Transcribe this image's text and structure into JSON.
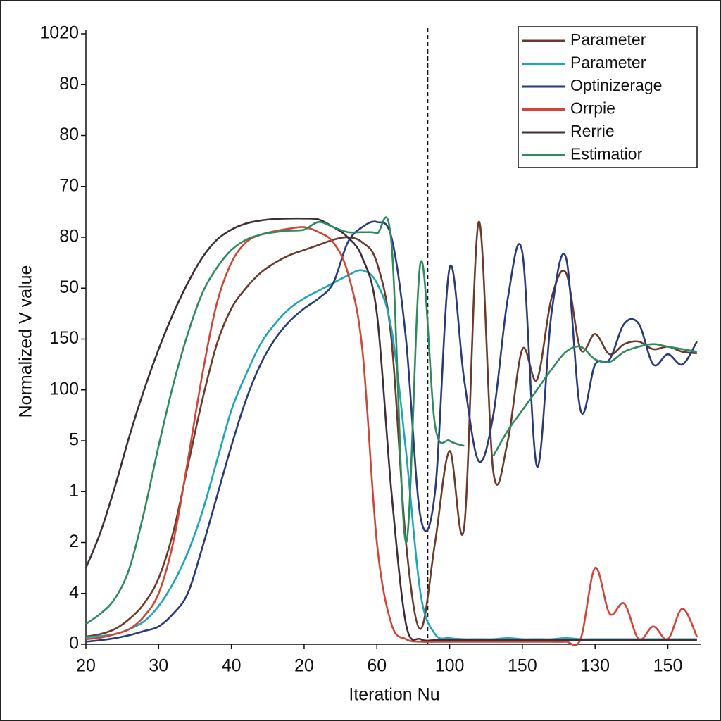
{
  "chart_data": {
    "type": "line",
    "xlabel": "Iteration Nu",
    "ylabel": "Normalized V value",
    "x": [
      0,
      0.2,
      0.4,
      0.6,
      0.8,
      1,
      1.2,
      1.4,
      1.6,
      1.8,
      2,
      2.2,
      2.4,
      2.6,
      2.8,
      3,
      3.2,
      3.4,
      3.6,
      3.8,
      4,
      4.2,
      4.4,
      4.6,
      4.8,
      5,
      5.2,
      5.4,
      5.6,
      5.8,
      6,
      6.2,
      6.4,
      6.6,
      6.8,
      7,
      7.2,
      7.4,
      7.6,
      7.8,
      8,
      8.2,
      8.4
    ],
    "series": [
      {
        "name": "Parameter",
        "color": "#6b3a2a",
        "values": [
          0.15,
          0.2,
          0.3,
          0.5,
          0.8,
          1.3,
          2.2,
          3.5,
          4.8,
          5.9,
          6.6,
          7.0,
          7.3,
          7.5,
          7.65,
          7.75,
          7.85,
          7.95,
          8.0,
          7.9,
          7.5,
          6.0,
          2.0,
          0.3,
          2.0,
          3.8,
          2.3,
          8.3,
          3.4,
          4.0,
          5.8,
          5.2,
          6.8,
          7.3,
          5.8,
          6.1,
          5.7,
          5.9,
          5.95,
          5.8,
          5.85,
          5.75,
          5.72
        ]
      },
      {
        "name": "Parameter",
        "color": "#1fa5b5",
        "values": [
          0.14,
          0.16,
          0.2,
          0.3,
          0.45,
          0.75,
          1.2,
          1.8,
          2.6,
          3.6,
          4.6,
          5.3,
          5.9,
          6.3,
          6.6,
          6.8,
          6.95,
          7.1,
          7.25,
          7.35,
          7.1,
          6.2,
          3.8,
          1.0,
          0.2,
          0.12,
          0.1,
          0.1,
          0.1,
          0.12,
          0.1,
          0.1,
          0.1,
          0.12,
          0.1,
          0.1,
          0.1,
          0.1,
          0.1,
          0.1,
          0.1,
          0.1,
          0.1
        ]
      },
      {
        "name": "Optinizerage",
        "color": "#283a7a",
        "values": [
          0.05,
          0.08,
          0.12,
          0.18,
          0.26,
          0.35,
          0.6,
          1.0,
          1.9,
          2.9,
          3.9,
          4.8,
          5.5,
          6.0,
          6.35,
          6.6,
          6.8,
          7.1,
          7.9,
          8.2,
          8.3,
          8.0,
          6.0,
          2.5,
          3.0,
          7.4,
          5.2,
          3.6,
          4.5,
          6.8,
          7.7,
          3.5,
          6.5,
          7.6,
          4.6,
          5.5,
          5.6,
          6.3,
          6.3,
          5.5,
          5.7,
          5.5,
          5.95
        ]
      },
      {
        "name": "Orrpie",
        "color": "#d04535",
        "values": [
          0.1,
          0.13,
          0.2,
          0.3,
          0.55,
          1.0,
          2.0,
          3.6,
          5.3,
          6.7,
          7.5,
          7.9,
          8.05,
          8.12,
          8.17,
          8.2,
          8.1,
          7.9,
          7.3,
          5.8,
          2.0,
          0.4,
          0.1,
          0.05,
          0.05,
          0.05,
          0.05,
          0.05,
          0.05,
          0.05,
          0.05,
          0.05,
          0.05,
          0.05,
          0.1,
          1.5,
          0.6,
          0.8,
          0.1,
          0.35,
          0.1,
          0.7,
          0.15
        ]
      },
      {
        "name": "Rerrie",
        "color": "#3d2f3a",
        "values": [
          1.5,
          2.2,
          3.1,
          4.1,
          5.0,
          5.8,
          6.5,
          7.1,
          7.6,
          7.95,
          8.15,
          8.27,
          8.33,
          8.36,
          8.37,
          8.37,
          8.35,
          8.2,
          8.0,
          7.6,
          6.5,
          3.0,
          0.4,
          0.1,
          0.08,
          0.08,
          0.08,
          0.08,
          0.08,
          0.08,
          0.08,
          0.08,
          0.08,
          0.08,
          0.08,
          0.08,
          0.08,
          0.08,
          0.08,
          0.08,
          0.08,
          0.08,
          0.08
        ]
      },
      {
        "name": "Estimatior",
        "color": "#2e8b5e",
        "values": [
          0.4,
          0.6,
          0.9,
          1.5,
          2.6,
          3.9,
          5.1,
          6.1,
          6.9,
          7.4,
          7.75,
          7.95,
          8.05,
          8.1,
          8.13,
          8.15,
          8.3,
          8.2,
          8.1,
          8.1,
          8.08,
          7.9,
          2.0,
          7.5,
          4.3,
          4.0,
          3.9,
          null,
          3.7,
          4.2,
          4.6,
          5.0,
          5.4,
          5.75,
          5.85,
          5.6,
          5.55,
          5.75,
          5.85,
          5.9,
          5.85,
          5.8,
          5.75
        ]
      }
    ],
    "xlim": [
      0,
      8.45
    ],
    "ylim": [
      0,
      12
    ],
    "xticks": [
      {
        "value": 0,
        "label": "20"
      },
      {
        "value": 1,
        "label": "30"
      },
      {
        "value": 2,
        "label": "40"
      },
      {
        "value": 3,
        "label": "20"
      },
      {
        "value": 4,
        "label": "60"
      },
      {
        "value": 5,
        "label": "100"
      },
      {
        "value": 6,
        "label": "150"
      },
      {
        "value": 7,
        "label": "130"
      },
      {
        "value": 8,
        "label": "150"
      }
    ],
    "yticks": [
      0,
      {
        "value": 1,
        "label": "4"
      },
      {
        "value": 2,
        "label": "2"
      },
      {
        "value": 3,
        "label": "1"
      },
      {
        "value": 4,
        "label": "5"
      },
      {
        "value": 5,
        "label": "100"
      },
      {
        "value": 6,
        "label": "150"
      },
      {
        "value": 7,
        "label": "50"
      },
      {
        "value": 8,
        "label": "80"
      },
      {
        "value": 9,
        "label": "70"
      },
      {
        "value": 10,
        "label": "80"
      },
      {
        "value": 11,
        "label": "80"
      },
      {
        "value": 12,
        "label": "1020"
      }
    ],
    "vline": 4.7,
    "legend": "upper right"
  }
}
